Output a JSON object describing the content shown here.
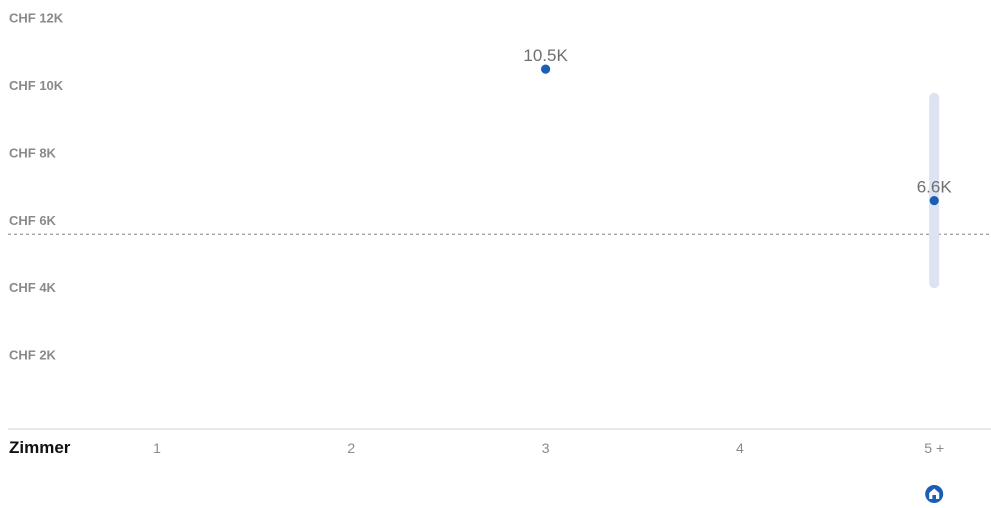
{
  "chart_data": {
    "type": "scatter",
    "xlabel": "Zimmer",
    "categories": [
      "1",
      "2",
      "3",
      "4",
      "5 +"
    ],
    "y_ticks": [
      "CHF 2K",
      "CHF 4K",
      "CHF 6K",
      "CHF 8K",
      "CHF 10K",
      "CHF 12K"
    ],
    "ylim": [
      0,
      12000
    ],
    "points": [
      {
        "category": "3",
        "value": 10500,
        "label": "10.5K"
      },
      {
        "category": "5 +",
        "value": 6600,
        "label": "6.6K",
        "range": [
          4000,
          9800
        ]
      }
    ],
    "reference_line": 5600,
    "grid": false,
    "colors": {
      "point": "#1a5fb4",
      "range_bar": "#dde3f2",
      "reference_line": "#9a9a9a",
      "axis": "#d4d4d4",
      "icon": "#1a5fb4"
    },
    "icon": "home-icon"
  }
}
